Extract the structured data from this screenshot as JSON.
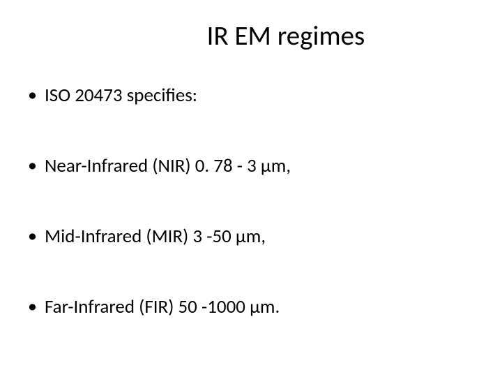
{
  "slide": {
    "title": "IR EM regimes",
    "bullets": [
      "ISO 20473 specifies:",
      "Near-Infrared (NIR) 0. 78 - 3 μm,",
      "Mid-Infrared (MIR) 3 -50 μm,",
      "Far-Infrared (FIR) 50 -1000 μm."
    ],
    "title_fontsize": 39,
    "bullet_fontsize": 27,
    "background_color": "#ffffff",
    "text_color": "#000000",
    "font_family": "Calibri"
  }
}
